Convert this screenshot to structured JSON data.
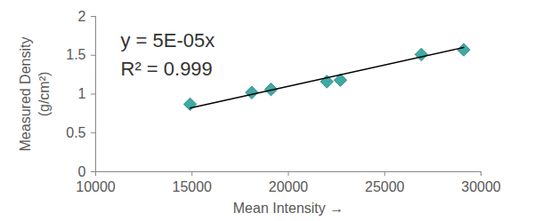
{
  "chart_data": {
    "type": "scatter",
    "x_label": "Mean Intensity",
    "y_label": "Measured Density\n(g/cm²)",
    "annotations": [
      "y = 5E-05x",
      "R² = 0.999"
    ],
    "series": [
      {
        "type": "scatter",
        "marker": "diamond",
        "color": "#3fa9a5",
        "x": [
          14900,
          18100,
          19100,
          22000,
          22700,
          26900,
          29100
        ],
        "values": [
          0.87,
          1.02,
          1.06,
          1.16,
          1.18,
          1.51,
          1.57
        ]
      },
      {
        "type": "line",
        "line_style": "solid",
        "color": "#000000",
        "x": [
          14900,
          29100
        ],
        "values": [
          0.82,
          1.6
        ]
      }
    ],
    "xlim": [
      10000,
      30000
    ],
    "xticks": [
      10000,
      15000,
      20000,
      25000,
      30000
    ],
    "ylim": [
      0,
      2
    ],
    "yticks": [
      0,
      0.5,
      1,
      1.5,
      2
    ],
    "grid": false
  }
}
